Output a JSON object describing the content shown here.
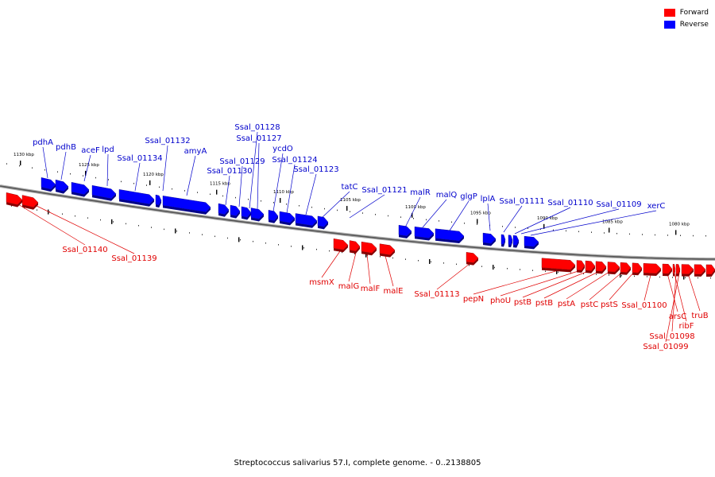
{
  "legend": {
    "forward_label": "Forward",
    "reverse_label": "Reverse",
    "forward_color": "#ff0000",
    "reverse_color": "#0000ff"
  },
  "caption": "Streptococcus salivarius 57.I, complete genome. - 0..2138805",
  "axis": {
    "tick_labels": [
      "1130 kbp",
      "1125 kbp",
      "1120 kbp",
      "1115 kbp",
      "1110 kbp",
      "1105 kbp",
      "1100 kbp",
      "1095 kbp",
      "1090 kbp",
      "1085 kbp",
      "1080 kbp"
    ]
  },
  "reverse_gene_labels": [
    "pdhA",
    "pdhB",
    "aceF",
    "lpd",
    "Ssal_01134",
    "Ssal_01132",
    "amyA",
    "Ssal_01130",
    "Ssal_01129",
    "Ssal_01128",
    "Ssal_01127",
    "ycdO",
    "Ssal_01124",
    "Ssal_01123",
    "tatC",
    "Ssal_01121",
    "malR",
    "malQ",
    "glgP",
    "lplA",
    "Ssal_01111",
    "Ssal_01110",
    "Ssal_01109",
    "xerC"
  ],
  "forward_gene_labels": [
    "Ssal_01140",
    "Ssal_01139",
    "msmX",
    "malG",
    "malF",
    "malE",
    "Ssal_01113",
    "pepN",
    "phoU",
    "pstB",
    "pstB",
    "pstA",
    "pstC",
    "pstS",
    "Ssal_01100",
    "arsC",
    "ribF",
    "Ssal_01098",
    "Ssal_01099",
    "truB"
  ]
}
